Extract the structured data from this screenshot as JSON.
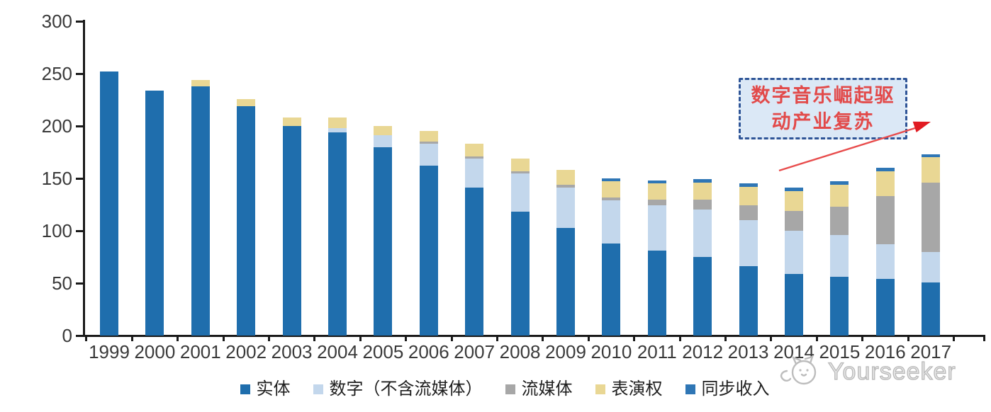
{
  "chart_data": {
    "type": "bar",
    "stacked": true,
    "title": "",
    "xlabel": "",
    "ylabel": "",
    "grid": false,
    "legend_position": "bottom",
    "ylim": [
      0,
      300
    ],
    "yticks": [
      0,
      50,
      100,
      150,
      200,
      250,
      300
    ],
    "categories": [
      "1999",
      "2000",
      "2001",
      "2002",
      "2003",
      "2004",
      "2005",
      "2006",
      "2007",
      "2008",
      "2009",
      "2010",
      "2011",
      "2012",
      "2013",
      "2014",
      "2015",
      "2016",
      "2017"
    ],
    "series": [
      {
        "name": "实体",
        "color": "#1f6ead",
        "values": [
          252,
          234,
          238,
          219,
          200,
          194,
          180,
          162,
          141,
          118,
          103,
          88,
          81,
          75,
          66,
          59,
          56,
          54,
          51
        ]
      },
      {
        "name": "数字（不含流媒体）",
        "color": "#c3d7ec",
        "values": [
          0,
          0,
          0,
          0,
          0,
          4,
          11,
          21,
          28,
          37,
          38,
          41,
          43,
          45,
          44,
          41,
          40,
          33,
          29
        ]
      },
      {
        "name": "流媒体",
        "color": "#a7a7a7",
        "values": [
          0,
          0,
          0,
          0,
          0,
          0,
          0,
          2,
          2,
          2,
          3,
          3,
          6,
          10,
          14,
          19,
          27,
          46,
          66
        ]
      },
      {
        "name": "表演权",
        "color": "#e9d794",
        "values": [
          0,
          0,
          6,
          7,
          8,
          10,
          9,
          10,
          12,
          12,
          14,
          15,
          15,
          16,
          18,
          19,
          21,
          24,
          24
        ]
      },
      {
        "name": "同步收入",
        "color": "#2f76b5",
        "values": [
          0,
          0,
          0,
          0,
          0,
          0,
          0,
          0,
          0,
          0,
          0,
          3,
          3,
          3,
          3,
          3,
          3,
          3,
          3
        ]
      }
    ]
  },
  "annotation": {
    "line1": "数字音乐崛起驱",
    "line2": "动产业复苏",
    "text_color": "#e24a4a",
    "border_color": "#2f5597",
    "fill_color": "#dbe8f6",
    "arrow_color": "#e84c4c"
  },
  "watermark": {
    "text": "Yourseeker"
  },
  "colors": {
    "axis": "#1a1a1a",
    "tick_label": "#3a3a3a",
    "background": "#ffffff"
  }
}
